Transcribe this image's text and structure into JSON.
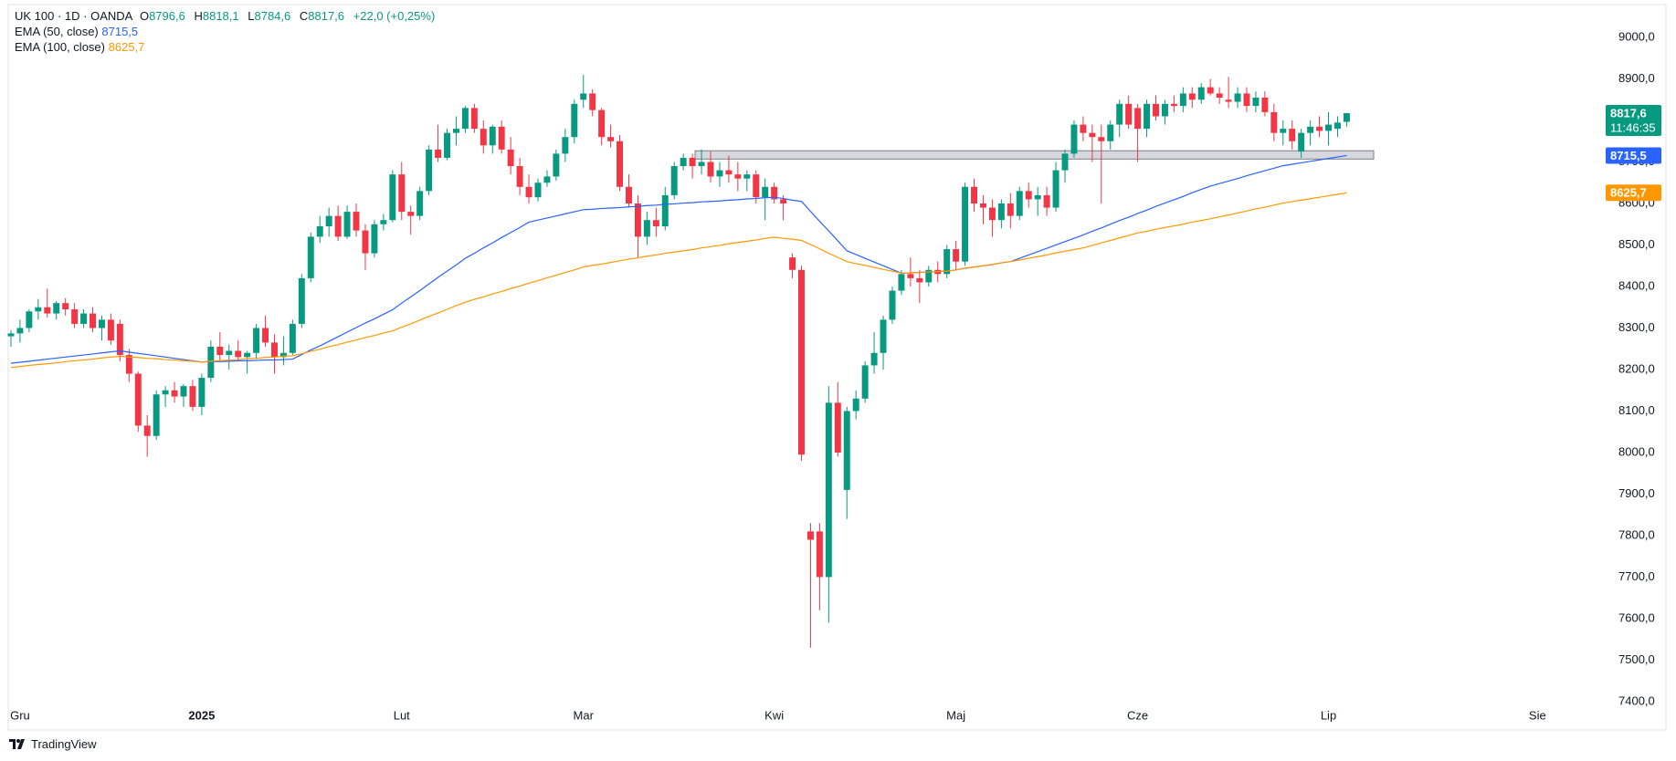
{
  "chart_data": {
    "type": "candlestick",
    "header": {
      "symbol": "UK 100 · 1D · OANDA",
      "ohlc": [
        {
          "key": "O",
          "value": "8796,6"
        },
        {
          "key": "H",
          "value": "8818,1"
        },
        {
          "key": "L",
          "value": "8784,6"
        },
        {
          "key": "C",
          "value": "8817,6"
        }
      ],
      "change": "+22,0 (+0,25%)"
    },
    "categories": [
      null,
      "Gru",
      null,
      null,
      null,
      null,
      null,
      null,
      null,
      null,
      null,
      null,
      null,
      null,
      null,
      null,
      null,
      null,
      null,
      null,
      null,
      "2025",
      null,
      null,
      null,
      null,
      null,
      null,
      null,
      null,
      null,
      null,
      null,
      null,
      null,
      null,
      null,
      null,
      null,
      null,
      null,
      null,
      null,
      "Lut",
      null,
      null,
      null,
      null,
      null,
      null,
      null,
      null,
      null,
      null,
      null,
      null,
      null,
      null,
      null,
      null,
      null,
      null,
      null,
      "Mar",
      null,
      null,
      null,
      null,
      null,
      null,
      null,
      null,
      null,
      null,
      null,
      null,
      null,
      null,
      null,
      null,
      null,
      null,
      null,
      null,
      "Kwi",
      null,
      null,
      null,
      null,
      null,
      null,
      null,
      null,
      null,
      null,
      null,
      null,
      null,
      null,
      null,
      null,
      null,
      null,
      null,
      "Maj",
      null,
      null,
      null,
      null,
      null,
      null,
      null,
      null,
      null,
      null,
      null,
      null,
      null,
      null,
      null,
      null,
      null,
      null,
      null,
      "Cze",
      null,
      null,
      null,
      null,
      null,
      null,
      null,
      null,
      null,
      null,
      null,
      null,
      null,
      null,
      null,
      null,
      null,
      null,
      null,
      null,
      "Lip",
      null,
      null,
      null,
      null,
      null,
      null,
      null,
      null,
      null,
      null,
      null,
      null,
      null,
      null,
      null,
      null,
      null,
      null,
      null,
      null,
      null,
      null,
      "Sie",
      null,
      null,
      null,
      null,
      null,
      null
    ],
    "open": [
      8280,
      8287,
      8300,
      8340,
      8350,
      8335,
      8360,
      8345,
      8310,
      8335,
      8300,
      8320,
      8310,
      8235,
      8190,
      8065,
      8040,
      8140,
      8150,
      8135,
      8160,
      8110,
      8180,
      8255,
      8235,
      8245,
      8230,
      8240,
      8300,
      8265,
      8230,
      8240,
      8310,
      8420,
      8520,
      8545,
      8570,
      8520,
      8580,
      8535,
      8480,
      8550,
      8560,
      8670,
      8580,
      8570,
      8630,
      8730,
      8710,
      8770,
      8780,
      8830,
      8780,
      8740,
      8785,
      8730,
      8690,
      8640,
      8615,
      8650,
      8665,
      8720,
      8760,
      8850,
      8865,
      8825,
      8760,
      8750,
      8640,
      8600,
      8520,
      8560,
      8545,
      8620,
      8690,
      8710,
      8690,
      8700,
      8665,
      8680,
      8670,
      8660,
      8670,
      8615,
      8640,
      8610,
      8470,
      8440,
      7810,
      7810,
      7700,
      8120,
      7910,
      8100,
      8130,
      8210,
      8240,
      8320,
      8390,
      8430,
      8420,
      8410,
      8440,
      8430,
      8490,
      8460,
      8640,
      8600,
      8590,
      8560,
      8600,
      8570,
      8630,
      8610,
      8620,
      8590,
      8680,
      8720,
      8790,
      8770,
      8760,
      8750,
      8790,
      8840,
      8830,
      8780,
      8840,
      8810,
      8840,
      8835,
      8865,
      8850,
      8880,
      8865,
      8850,
      8845,
      8865,
      8835,
      8855,
      8820,
      8770,
      8780,
      8725,
      8770,
      8785,
      8775,
      8780,
      8796.6,
      null,
      null,
      null,
      null,
      null,
      null,
      null,
      null,
      null,
      null,
      null,
      null,
      null,
      null,
      null,
      null,
      null,
      null,
      null,
      null,
      null,
      null,
      null,
      null,
      null,
      null,
      null
    ],
    "high": [
      8295,
      8320,
      8345,
      8370,
      8395,
      8365,
      8372,
      8360,
      8345,
      8350,
      8330,
      8335,
      8320,
      8250,
      8195,
      8090,
      8150,
      8160,
      8170,
      8165,
      8175,
      8190,
      8270,
      8290,
      8260,
      8270,
      8245,
      8310,
      8330,
      8285,
      8280,
      8320,
      8430,
      8530,
      8570,
      8590,
      8595,
      8595,
      8600,
      8550,
      8560,
      8575,
      8680,
      8700,
      8595,
      8640,
      8740,
      8790,
      8780,
      8810,
      8835,
      8840,
      8800,
      8790,
      8800,
      8760,
      8710,
      8670,
      8660,
      8680,
      8730,
      8780,
      8850,
      8910,
      8875,
      8830,
      8790,
      8765,
      8670,
      8620,
      8580,
      8590,
      8640,
      8700,
      8720,
      8720,
      8730,
      8725,
      8700,
      8715,
      8700,
      8680,
      8680,
      8660,
      8650,
      8620,
      8480,
      8450,
      7830,
      7830,
      8160,
      8170,
      8110,
      8150,
      8220,
      8290,
      8330,
      8400,
      8440,
      8470,
      8440,
      8450,
      8460,
      8500,
      8510,
      8650,
      8660,
      8620,
      8610,
      8610,
      8625,
      8640,
      8650,
      8640,
      8640,
      8700,
      8730,
      8800,
      8810,
      8790,
      8790,
      8800,
      8850,
      8860,
      8840,
      8850,
      8860,
      8850,
      8860,
      8880,
      8880,
      8890,
      8900,
      8880,
      8905,
      8880,
      8880,
      8870,
      8870,
      8840,
      8800,
      8800,
      8780,
      8800,
      8810,
      8820,
      8810,
      8818.1,
      null,
      null,
      null,
      null,
      null,
      null,
      null,
      null,
      null,
      null,
      null,
      null,
      null,
      null,
      null,
      null,
      null,
      null,
      null,
      null,
      null,
      null,
      null,
      null,
      null,
      null,
      null
    ],
    "low": [
      8255,
      8265,
      8290,
      8320,
      8325,
      8320,
      8330,
      8300,
      8300,
      8290,
      8270,
      8260,
      8220,
      8170,
      8050,
      7990,
      8030,
      8110,
      8120,
      8110,
      8100,
      8090,
      8170,
      8220,
      8200,
      8220,
      8190,
      8225,
      8255,
      8190,
      8210,
      8235,
      8300,
      8410,
      8505,
      8520,
      8510,
      8515,
      8520,
      8440,
      8470,
      8535,
      8555,
      8560,
      8525,
      8560,
      8620,
      8700,
      8705,
      8740,
      8770,
      8770,
      8720,
      8720,
      8720,
      8670,
      8620,
      8600,
      8605,
      8640,
      8655,
      8700,
      8745,
      8830,
      8810,
      8740,
      8735,
      8630,
      8590,
      8470,
      8500,
      8520,
      8535,
      8610,
      8680,
      8660,
      8670,
      8650,
      8640,
      8650,
      8630,
      8630,
      8600,
      8560,
      8600,
      8560,
      8420,
      7980,
      7530,
      7620,
      7590,
      7990,
      7840,
      8080,
      8120,
      8190,
      8200,
      8310,
      8380,
      8400,
      8360,
      8400,
      8410,
      8420,
      8440,
      8450,
      8580,
      8550,
      8520,
      8540,
      8540,
      8560,
      8590,
      8570,
      8570,
      8580,
      8650,
      8710,
      8750,
      8700,
      8600,
      8730,
      8760,
      8780,
      8700,
      8760,
      8800,
      8790,
      8820,
      8820,
      8830,
      8840,
      8860,
      8840,
      8830,
      8830,
      8820,
      8820,
      8810,
      8750,
      8740,
      8730,
      8710,
      8740,
      8760,
      8740,
      8760,
      8784.6,
      null,
      null,
      null,
      null,
      null,
      null,
      null,
      null,
      null,
      null,
      null,
      null,
      null,
      null,
      null,
      null,
      null,
      null,
      null,
      null,
      null,
      null,
      null,
      null,
      null,
      null,
      null
    ],
    "close": [
      8287,
      8300,
      8340,
      8350,
      8335,
      8360,
      8345,
      8310,
      8335,
      8300,
      8320,
      8270,
      8235,
      8190,
      8065,
      8040,
      8140,
      8150,
      8135,
      8160,
      8110,
      8180,
      8255,
      8235,
      8245,
      8230,
      8240,
      8300,
      8265,
      8230,
      8240,
      8310,
      8420,
      8520,
      8545,
      8570,
      8520,
      8580,
      8535,
      8480,
      8550,
      8560,
      8670,
      8580,
      8570,
      8630,
      8730,
      8710,
      8770,
      8780,
      8830,
      8780,
      8740,
      8785,
      8730,
      8690,
      8640,
      8615,
      8650,
      8665,
      8720,
      8760,
      8840,
      8865,
      8825,
      8760,
      8750,
      8640,
      8600,
      8520,
      8560,
      8545,
      8620,
      8690,
      8710,
      8690,
      8700,
      8665,
      8680,
      8670,
      8660,
      8670,
      8615,
      8640,
      8610,
      8600,
      8440,
      7995,
      7790,
      7700,
      8120,
      8000,
      8100,
      8130,
      8210,
      8240,
      8320,
      8390,
      8430,
      8420,
      8410,
      8440,
      8430,
      8490,
      8460,
      8640,
      8600,
      8590,
      8560,
      8600,
      8570,
      8630,
      8610,
      8620,
      8590,
      8680,
      8720,
      8790,
      8770,
      8760,
      8750,
      8790,
      8840,
      8790,
      8780,
      8840,
      8810,
      8840,
      8835,
      8865,
      8850,
      8880,
      8865,
      8855,
      8845,
      8865,
      8835,
      8855,
      8820,
      8770,
      8780,
      8750,
      8770,
      8785,
      8775,
      8790,
      8795,
      8817.6,
      null,
      null,
      null,
      null,
      null,
      null,
      null,
      null,
      null,
      null,
      null,
      null,
      null,
      null,
      null,
      null,
      null,
      null,
      null,
      null,
      null,
      null,
      null,
      null,
      null,
      null,
      null
    ],
    "up_color": "#089981",
    "down_color": "#f23645",
    "series": [
      {
        "name": "EMA (50, close)",
        "value_label": "8715,5",
        "color": "#2962ff",
        "values": [
          8215,
          8217.5,
          8220,
          8222.5,
          8225,
          8227.5,
          8230,
          8232.5,
          8235,
          8237.5,
          8240,
          8242.5,
          8245,
          8242,
          8239,
          8236,
          8233,
          8230,
          8227,
          8224,
          8221,
          8218,
          8219,
          8219,
          8220,
          8221,
          8221,
          8222,
          8223,
          8223,
          8224,
          8225,
          8236,
          8247,
          8257,
          8268,
          8279,
          8290,
          8301,
          8312,
          8322,
          8333,
          8344,
          8360,
          8375,
          8390,
          8406,
          8422,
          8437,
          8452,
          8468,
          8480,
          8493,
          8505,
          8518,
          8530,
          8542,
          8555,
          8560,
          8565,
          8570,
          8575,
          8580,
          8585,
          8586,
          8588,
          8589,
          8590,
          8592,
          8593,
          8595,
          8596,
          8598,
          8599,
          8601,
          8602,
          8604,
          8605,
          8606,
          8608,
          8609,
          8611,
          8612,
          8614,
          8615,
          8612,
          8608,
          8605,
          8581,
          8557,
          8534,
          8510,
          8486,
          8477,
          8468,
          8459,
          8450,
          8441,
          8432,
          8433,
          8434,
          8435,
          8436,
          8437,
          8440,
          8444,
          8447,
          8450,
          8453,
          8457,
          8460,
          8468,
          8476,
          8484,
          8492,
          8500,
          8508,
          8516,
          8524,
          8533,
          8541,
          8550,
          8559,
          8567,
          8576,
          8584,
          8593,
          8601,
          8609,
          8617,
          8626,
          8634,
          8642,
          8648,
          8654,
          8660,
          8667,
          8673,
          8679,
          8685,
          8691,
          8694.5,
          8698,
          8701.5,
          8705,
          8708.5,
          8712,
          8715.5,
          null,
          null,
          null,
          null,
          null,
          null,
          null,
          null,
          null,
          null,
          null,
          null,
          null,
          null,
          null,
          null,
          null,
          null,
          null,
          null,
          null,
          null,
          null,
          null,
          null,
          null,
          null
        ]
      },
      {
        "name": "EMA (100, close)",
        "value_label": "8625,7",
        "color": "#ff9800",
        "values": [
          8205,
          8207,
          8210,
          8212,
          8214,
          8216,
          8219,
          8221,
          8223,
          8225,
          8228,
          8230,
          8232,
          8230,
          8229,
          8227,
          8226,
          8224,
          8223,
          8221,
          8220,
          8218,
          8220,
          8221,
          8223,
          8224,
          8226,
          8227,
          8229,
          8230,
          8232,
          8233,
          8238,
          8244,
          8249,
          8255,
          8260,
          8266,
          8271,
          8277,
          8282,
          8288,
          8293,
          8302,
          8310,
          8319,
          8328,
          8336,
          8345,
          8354,
          8362,
          8369,
          8375,
          8382,
          8388,
          8395,
          8401,
          8408,
          8414,
          8421,
          8427,
          8434,
          8440,
          8447,
          8451,
          8454,
          8458,
          8462,
          8466,
          8469,
          8473,
          8476,
          8480,
          8483,
          8486,
          8489,
          8493,
          8496,
          8499,
          8503,
          8506,
          8509,
          8512,
          8516,
          8519,
          8516,
          8514,
          8511,
          8501,
          8491,
          8480,
          8470,
          8460,
          8455,
          8451,
          8446,
          8441,
          8437,
          8432,
          8433,
          8434,
          8435,
          8436,
          8437,
          8440,
          8444,
          8447,
          8450,
          8453,
          8457,
          8460,
          8464,
          8468,
          8472,
          8476,
          8481,
          8485,
          8489,
          8493,
          8499,
          8505,
          8511,
          8517,
          8523,
          8529,
          8533,
          8538,
          8542,
          8546,
          8550,
          8555,
          8559,
          8563,
          8568,
          8572,
          8577,
          8582,
          8587,
          8591,
          8596,
          8601,
          8604.5,
          8608,
          8611.5,
          8615,
          8618.5,
          8622,
          8625.7,
          null,
          null,
          null,
          null,
          null,
          null,
          null,
          null,
          null,
          null,
          null,
          null,
          null,
          null,
          null,
          null,
          null,
          null,
          null,
          null,
          null,
          null,
          null,
          null,
          null,
          null,
          null
        ]
      }
    ],
    "ylim": [
      7391,
      9077
    ],
    "yticks": [
      {
        "value": 7400,
        "label": "7400,0"
      },
      {
        "value": 7500,
        "label": "7500,0"
      },
      {
        "value": 7600,
        "label": "7600,0"
      },
      {
        "value": 7700,
        "label": "7700,0"
      },
      {
        "value": 7800,
        "label": "7800,0"
      },
      {
        "value": 7900,
        "label": "7900,0"
      },
      {
        "value": 8000,
        "label": "8000,0"
      },
      {
        "value": 8100,
        "label": "8100,0"
      },
      {
        "value": 8200,
        "label": "8200,0"
      },
      {
        "value": 8300,
        "label": "8300,0"
      },
      {
        "value": 8400,
        "label": "8400,0"
      },
      {
        "value": 8500,
        "label": "8500,0"
      },
      {
        "value": 8600,
        "label": "8600,0"
      },
      {
        "value": 8700,
        "label": "8700,0"
      },
      {
        "value": 8800,
        "label": "8800,0"
      },
      {
        "value": 8900,
        "label": "8900,0"
      },
      {
        "value": 9000,
        "label": "9000,0"
      }
    ],
    "zone": [
      8707,
      8727
    ],
    "countdown": "11:46:35",
    "grid": false
  },
  "footer": {
    "brand": "TradingView"
  }
}
